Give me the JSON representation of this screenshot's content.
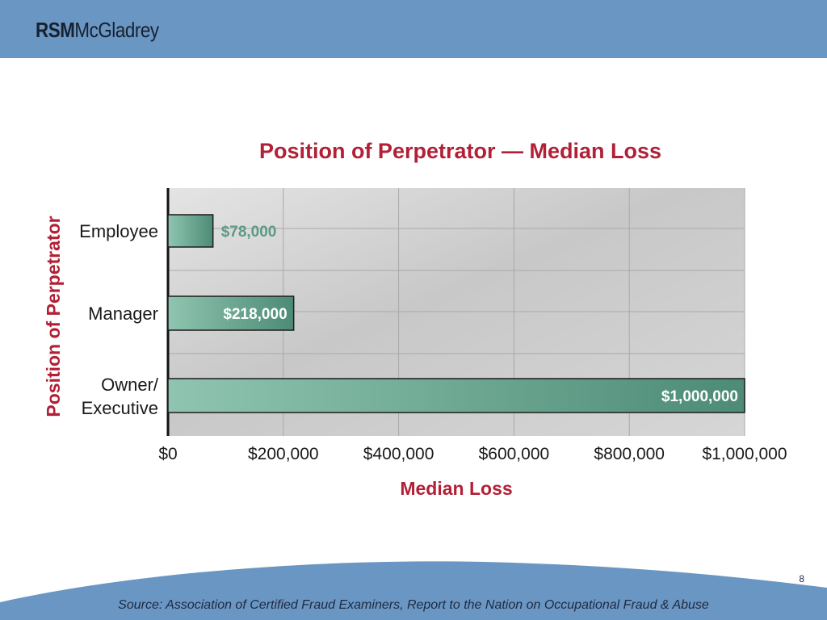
{
  "header": {
    "logo_bold": "RSM",
    "logo_rest": "McGladrey",
    "color": "#6a96c3"
  },
  "footer": {
    "page_number": "8",
    "source": "Source: Association of Certified Fraud Examiners, Report to the Nation on Occupational Fraud & Abuse"
  },
  "chart_data": {
    "type": "bar",
    "orientation": "horizontal",
    "title": "Position of Perpetrator — Median Loss",
    "xlabel": "Median Loss",
    "ylabel": "Position of Perpetrator",
    "categories": [
      "Employee",
      "Manager",
      "Owner/ Executive"
    ],
    "values": [
      78000,
      218000,
      1000000
    ],
    "data_labels": [
      "$78,000",
      "$218,000",
      "$1,000,000"
    ],
    "xlim": [
      0,
      1000000
    ],
    "x_ticks": [
      0,
      200000,
      400000,
      600000,
      800000,
      1000000
    ],
    "x_tick_labels": [
      "$0",
      "$200,000",
      "$400,000",
      "$600,000",
      "$800,000",
      "$1,000,000"
    ],
    "grid": true,
    "colors": {
      "title": "#b21f36",
      "bar": "#5fa08a",
      "background": "#cfcfcf"
    }
  }
}
